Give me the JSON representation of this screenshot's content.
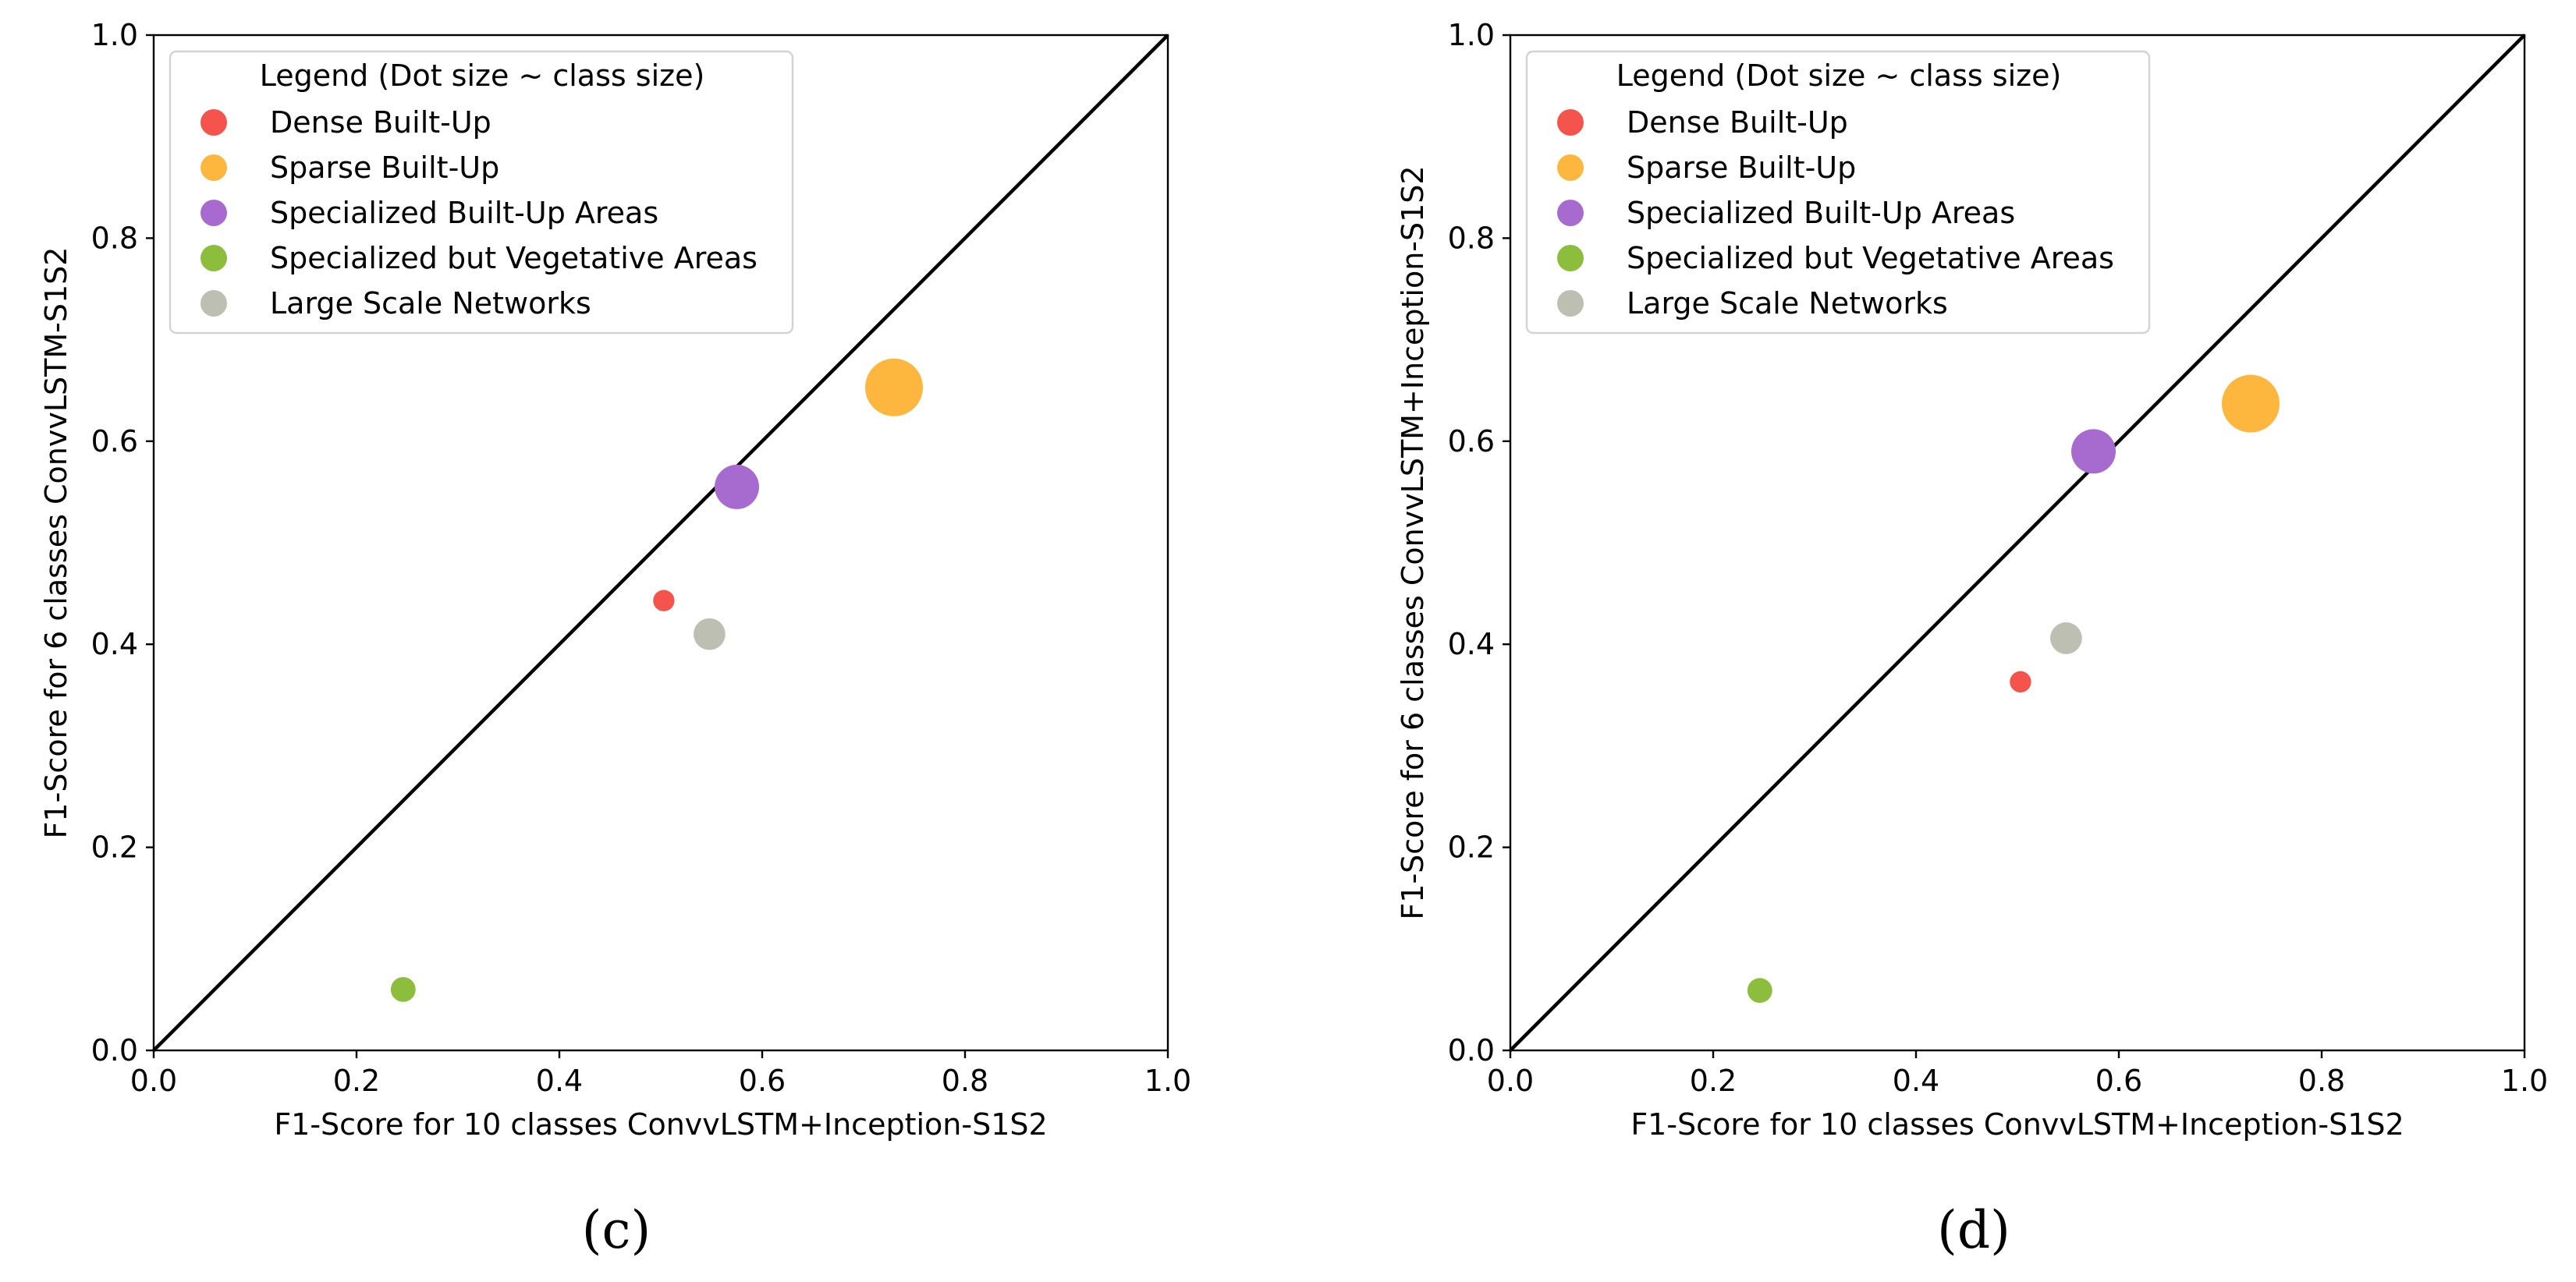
{
  "chart_data": [
    {
      "type": "scatter",
      "panel_label": "(c)",
      "xlabel": "F1-Score for 10 classes ConvvLSTM+Inception-S1S2",
      "ylabel": "F1-Score for 6 classes ConvvLSTM-S1S2",
      "xlim": [
        0.0,
        1.0
      ],
      "ylim": [
        0.0,
        1.0
      ],
      "xticks": [
        "0.0",
        "0.2",
        "0.4",
        "0.6",
        "0.8",
        "1.0"
      ],
      "yticks": [
        "0.0",
        "0.2",
        "0.4",
        "0.6",
        "0.8",
        "1.0"
      ],
      "grid": false,
      "reference_line": "y = x",
      "legend": {
        "title": "Legend (Dot size ~ class size)",
        "placement": "upper-left",
        "entries": [
          {
            "name": "Dense Built-Up",
            "color": "#f4544b"
          },
          {
            "name": "Sparse Built-Up",
            "color": "#fdb73f"
          },
          {
            "name": "Specialized Built-Up Areas",
            "color": "#a76bcf"
          },
          {
            "name": "Specialized but Vegetative Areas",
            "color": "#8dbd3c"
          },
          {
            "name": "Large Scale Networks",
            "color": "#bcbfb1"
          }
        ]
      },
      "series": [
        {
          "name": "Dense Built-Up",
          "x": 0.503,
          "y": 0.443,
          "relative_size": 0.37
        },
        {
          "name": "Sparse Built-Up",
          "x": 0.73,
          "y": 0.653,
          "relative_size": 1.0
        },
        {
          "name": "Specialized Built-Up Areas",
          "x": 0.575,
          "y": 0.555,
          "relative_size": 0.77
        },
        {
          "name": "Specialized but Vegetative Areas",
          "x": 0.246,
          "y": 0.06,
          "relative_size": 0.43
        },
        {
          "name": "Large Scale Networks",
          "x": 0.548,
          "y": 0.41,
          "relative_size": 0.55
        }
      ]
    },
    {
      "type": "scatter",
      "panel_label": "(d)",
      "xlabel": "F1-Score for 10 classes ConvvLSTM+Inception-S1S2",
      "ylabel": "F1-Score for 6 classes ConvvLSTM+Inception-S1S2",
      "xlim": [
        0.0,
        1.0
      ],
      "ylim": [
        0.0,
        1.0
      ],
      "xticks": [
        "0.0",
        "0.2",
        "0.4",
        "0.6",
        "0.8",
        "1.0"
      ],
      "yticks": [
        "0.0",
        "0.2",
        "0.4",
        "0.6",
        "0.8",
        "1.0"
      ],
      "grid": false,
      "reference_line": "y = x",
      "legend": {
        "title": "Legend (Dot size ~ class size)",
        "placement": "upper-left",
        "entries": [
          {
            "name": "Dense Built-Up",
            "color": "#f4544b"
          },
          {
            "name": "Sparse Built-Up",
            "color": "#fdb73f"
          },
          {
            "name": "Specialized Built-Up Areas",
            "color": "#a76bcf"
          },
          {
            "name": "Specialized but Vegetative Areas",
            "color": "#8dbd3c"
          },
          {
            "name": "Large Scale Networks",
            "color": "#bcbfb1"
          }
        ]
      },
      "series": [
        {
          "name": "Dense Built-Up",
          "x": 0.503,
          "y": 0.363,
          "relative_size": 0.37
        },
        {
          "name": "Sparse Built-Up",
          "x": 0.73,
          "y": 0.637,
          "relative_size": 1.0
        },
        {
          "name": "Specialized Built-Up Areas",
          "x": 0.575,
          "y": 0.59,
          "relative_size": 0.77
        },
        {
          "name": "Specialized but Vegetative Areas",
          "x": 0.246,
          "y": 0.059,
          "relative_size": 0.43
        },
        {
          "name": "Large Scale Networks",
          "x": 0.548,
          "y": 0.406,
          "relative_size": 0.55
        }
      ]
    }
  ]
}
